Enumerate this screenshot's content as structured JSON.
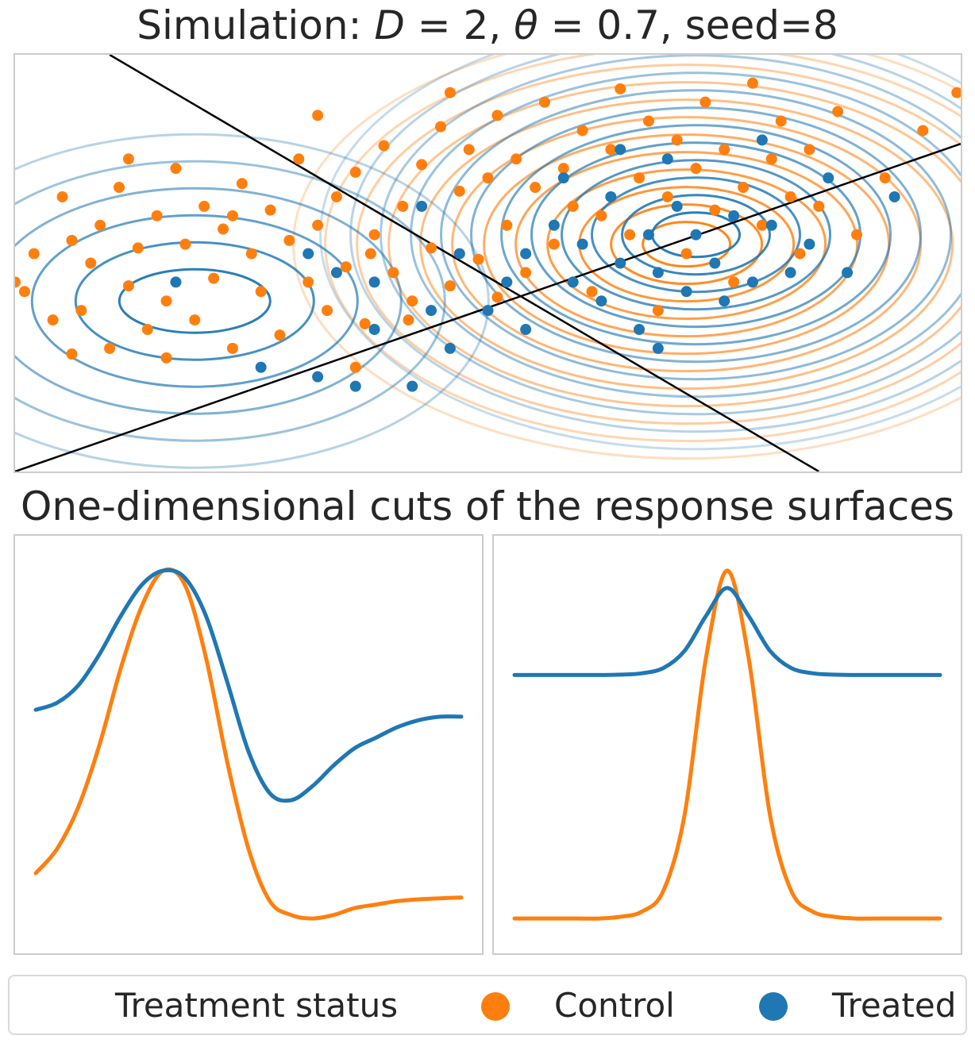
{
  "title": "Simulation: D = 2, θ = 0.7, seed=8",
  "title_parts": {
    "prefix": "Simulation: ",
    "d_symbol": "D",
    "eq1": " = 2, ",
    "theta_symbol": "θ",
    "eq2": " = 0.7, seed=8"
  },
  "subtitle": "One-dimensional cuts of the response surfaces",
  "colors": {
    "control": "#ff7f0e",
    "treated": "#1f77b4",
    "cut_line": "#000000",
    "frame": "#cccccc",
    "text": "#262626"
  },
  "legend": {
    "title": "Treatment status",
    "entries": [
      {
        "label": "Control",
        "color": "#ff7f0e"
      },
      {
        "label": "Treated",
        "color": "#1f77b4"
      }
    ]
  },
  "chart_data": [
    {
      "type": "scatter",
      "title": "Simulation: D = 2, θ = 0.7, seed=8",
      "xlim": [
        -2.5,
        2.5
      ],
      "ylim": [
        -1.1,
        1.1
      ],
      "grid": false,
      "axes_ticks": false,
      "series": [
        {
          "name": "Control",
          "color": "#ff7f0e",
          "points": [
            [
              -2.5,
              -0.1
            ],
            [
              -2.45,
              -0.15
            ],
            [
              -2.4,
              0.05
            ],
            [
              -2.3,
              -0.3
            ],
            [
              -2.25,
              0.35
            ],
            [
              -2.2,
              0.12
            ],
            [
              -2.15,
              -0.25
            ],
            [
              -2.1,
              0.0
            ],
            [
              -2.05,
              0.2
            ],
            [
              -2.0,
              -0.45
            ],
            [
              -1.95,
              0.4
            ],
            [
              -1.9,
              -0.12
            ],
            [
              -1.85,
              0.08
            ],
            [
              -1.8,
              -0.35
            ],
            [
              -1.75,
              0.25
            ],
            [
              -1.7,
              -0.2
            ],
            [
              -1.65,
              0.5
            ],
            [
              -1.6,
              0.1
            ],
            [
              -1.55,
              -0.3
            ],
            [
              -1.5,
              0.3
            ],
            [
              -1.45,
              -0.08
            ],
            [
              -1.4,
              0.18
            ],
            [
              -1.35,
              -0.45
            ],
            [
              -1.3,
              0.42
            ],
            [
              -1.25,
              0.05
            ],
            [
              -1.2,
              -0.15
            ],
            [
              -1.15,
              0.28
            ],
            [
              -1.1,
              -0.38
            ],
            [
              -1.05,
              0.12
            ],
            [
              -1.0,
              0.55
            ],
            [
              -0.95,
              -0.1
            ],
            [
              -0.9,
              0.2
            ],
            [
              -0.85,
              -0.25
            ],
            [
              -0.8,
              0.35
            ],
            [
              -0.75,
              -0.02
            ],
            [
              -0.7,
              0.48
            ],
            [
              -0.65,
              -0.32
            ],
            [
              -0.6,
              0.15
            ],
            [
              -0.55,
              0.62
            ],
            [
              -0.5,
              -0.05
            ],
            [
              -0.45,
              0.3
            ],
            [
              -0.4,
              -0.2
            ],
            [
              -0.35,
              0.52
            ],
            [
              -0.3,
              0.08
            ],
            [
              -0.25,
              0.72
            ],
            [
              -0.2,
              -0.12
            ],
            [
              -0.15,
              0.38
            ],
            [
              -0.1,
              0.6
            ],
            [
              -0.05,
              0.02
            ],
            [
              0.0,
              0.45
            ],
            [
              0.05,
              0.78
            ],
            [
              0.1,
              0.2
            ],
            [
              0.15,
              0.55
            ],
            [
              0.2,
              -0.05
            ],
            [
              0.25,
              0.4
            ],
            [
              0.3,
              0.85
            ],
            [
              0.35,
              0.1
            ],
            [
              0.4,
              0.5
            ],
            [
              0.45,
              0.3
            ],
            [
              0.5,
              0.7
            ],
            [
              0.55,
              -0.15
            ],
            [
              0.6,
              0.25
            ],
            [
              0.65,
              0.6
            ],
            [
              0.7,
              0.92
            ],
            [
              0.75,
              0.15
            ],
            [
              0.8,
              0.45
            ],
            [
              0.85,
              0.75
            ],
            [
              0.9,
              -0.25
            ],
            [
              0.95,
              0.35
            ],
            [
              1.0,
              0.65
            ],
            [
              1.05,
              0.05
            ],
            [
              1.1,
              0.5
            ],
            [
              1.15,
              0.85
            ],
            [
              1.2,
              0.28
            ],
            [
              1.25,
              0.6
            ],
            [
              1.3,
              -0.1
            ],
            [
              1.35,
              0.4
            ],
            [
              1.4,
              0.95
            ],
            [
              1.45,
              0.2
            ],
            [
              1.5,
              0.55
            ],
            [
              1.55,
              0.75
            ],
            [
              1.6,
              0.35
            ],
            [
              1.65,
              0.05
            ],
            [
              1.7,
              0.6
            ],
            [
              1.75,
              0.3
            ],
            [
              1.85,
              0.8
            ],
            [
              1.95,
              0.15
            ],
            [
              2.1,
              0.45
            ],
            [
              2.3,
              0.7
            ],
            [
              2.48,
              0.9
            ],
            [
              -1.7,
              -0.5
            ],
            [
              -0.7,
              -0.55
            ],
            [
              -0.2,
              0.9
            ],
            [
              -0.9,
              0.78
            ],
            [
              -1.9,
              0.55
            ],
            [
              -2.2,
              -0.48
            ],
            [
              -1.35,
              0.25
            ],
            [
              -0.42,
              -0.3
            ],
            [
              0.05,
              -0.18
            ],
            [
              -0.62,
              0.05
            ]
          ]
        },
        {
          "name": "Treated",
          "color": "#1f77b4",
          "points": [
            [
              -1.2,
              -0.55
            ],
            [
              -0.9,
              -0.6
            ],
            [
              -0.7,
              -0.65
            ],
            [
              -0.4,
              -0.65
            ],
            [
              -0.6,
              -0.1
            ],
            [
              -0.8,
              -0.05
            ],
            [
              -0.6,
              -0.35
            ],
            [
              -0.3,
              -0.25
            ],
            [
              -0.2,
              -0.45
            ],
            [
              0.0,
              -0.25
            ],
            [
              0.1,
              -0.1
            ],
            [
              0.2,
              0.05
            ],
            [
              0.35,
              0.2
            ],
            [
              0.45,
              -0.1
            ],
            [
              0.5,
              0.1
            ],
            [
              0.6,
              -0.2
            ],
            [
              0.65,
              0.35
            ],
            [
              0.7,
              0.0
            ],
            [
              0.8,
              -0.35
            ],
            [
              0.85,
              0.15
            ],
            [
              0.9,
              -0.05
            ],
            [
              1.0,
              0.3
            ],
            [
              1.05,
              -0.15
            ],
            [
              1.1,
              0.15
            ],
            [
              1.2,
              0.0
            ],
            [
              1.3,
              0.25
            ],
            [
              1.4,
              -0.1
            ],
            [
              1.5,
              0.2
            ],
            [
              1.6,
              -0.05
            ],
            [
              1.7,
              0.1
            ],
            [
              1.8,
              0.45
            ],
            [
              1.9,
              -0.05
            ],
            [
              0.95,
              0.55
            ],
            [
              1.45,
              0.65
            ],
            [
              0.4,
              0.45
            ],
            [
              0.2,
              -0.35
            ],
            [
              0.7,
              0.6
            ],
            [
              1.25,
              -0.2
            ],
            [
              0.9,
              -0.45
            ],
            [
              -0.35,
              0.3
            ],
            [
              -1.65,
              -0.1
            ],
            [
              -0.95,
              0.05
            ],
            [
              -0.15,
              0.05
            ],
            [
              2.15,
              0.35
            ]
          ]
        }
      ],
      "contours": [
        {
          "name": "Control",
          "center": [
            1.05,
            0.1
          ],
          "levels": 12,
          "color": "#ff7f0e"
        },
        {
          "name": "Treated",
          "center": [
            1.1,
            0.15
          ],
          "levels": 12,
          "color": "#1f77b4"
        },
        {
          "name": "Treated",
          "center": [
            -1.55,
            -0.2
          ],
          "levels": 6,
          "color": "#1f77b4"
        }
      ],
      "lines": [
        {
          "name": "Cut 1",
          "x": [
            -2.5,
            2.5
          ],
          "y": [
            -1.1,
            0.63
          ]
        },
        {
          "name": "Cut 2",
          "x": [
            -2.0,
            1.75
          ],
          "y": [
            1.1,
            -1.1
          ]
        }
      ]
    },
    {
      "type": "line",
      "title": "One-dimensional cuts of the response surfaces",
      "xlim": [
        -3,
        3
      ],
      "ylim": [
        -0.05,
        1.05
      ],
      "axes_ticks": false,
      "x": [
        -3.0,
        -2.7,
        -2.4,
        -2.1,
        -1.8,
        -1.5,
        -1.2,
        -0.9,
        -0.6,
        -0.3,
        0.0,
        0.3,
        0.6,
        0.9,
        1.2,
        1.5,
        1.8,
        2.1,
        2.4,
        2.7,
        3.0
      ],
      "series": [
        {
          "name": "Control",
          "color": "#ff7f0e",
          "values": [
            0.13,
            0.2,
            0.32,
            0.5,
            0.72,
            0.9,
            1.0,
            0.96,
            0.75,
            0.45,
            0.2,
            0.05,
            0.01,
            0.0,
            0.01,
            0.03,
            0.04,
            0.05,
            0.055,
            0.058,
            0.06
          ]
        },
        {
          "name": "Treated",
          "color": "#1f77b4",
          "values": [
            0.6,
            0.62,
            0.67,
            0.76,
            0.87,
            0.96,
            1.0,
            0.98,
            0.87,
            0.68,
            0.48,
            0.36,
            0.34,
            0.38,
            0.44,
            0.49,
            0.52,
            0.55,
            0.57,
            0.58,
            0.58
          ]
        }
      ]
    },
    {
      "type": "line",
      "xlim": [
        -3,
        3
      ],
      "ylim": [
        -0.05,
        1.05
      ],
      "axes_ticks": false,
      "x": [
        -3.0,
        -2.7,
        -2.4,
        -2.1,
        -1.8,
        -1.5,
        -1.2,
        -0.9,
        -0.6,
        -0.3,
        0.0,
        0.3,
        0.6,
        0.9,
        1.2,
        1.5,
        1.8,
        2.1,
        2.4,
        2.7,
        3.0
      ],
      "series": [
        {
          "name": "Control",
          "color": "#ff7f0e",
          "values": [
            0.0,
            0.0,
            0.0,
            0.0,
            0.0,
            0.005,
            0.02,
            0.08,
            0.3,
            0.75,
            1.0,
            0.75,
            0.3,
            0.08,
            0.02,
            0.005,
            0.0,
            0.0,
            0.0,
            0.0,
            0.0
          ]
        },
        {
          "name": "Treated",
          "color": "#1f77b4",
          "values": [
            0.7,
            0.7,
            0.7,
            0.7,
            0.7,
            0.701,
            0.705,
            0.72,
            0.77,
            0.87,
            0.95,
            0.87,
            0.77,
            0.72,
            0.705,
            0.701,
            0.7,
            0.7,
            0.7,
            0.7,
            0.7
          ]
        }
      ]
    }
  ]
}
